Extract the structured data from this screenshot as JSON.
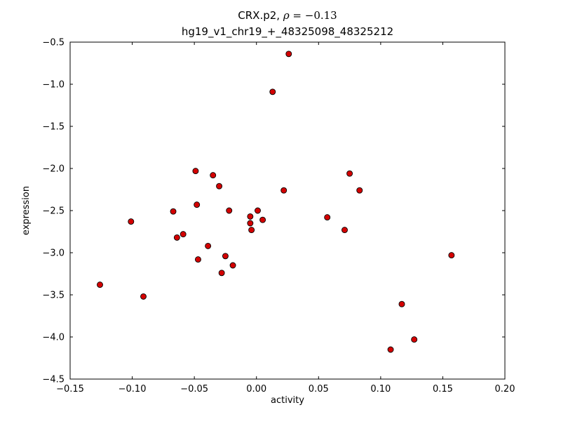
{
  "figure": {
    "background": "#ffffff",
    "frame_color": "#000000"
  },
  "chart_data": {
    "type": "scatter",
    "title": {
      "prefix": "CRX.p2, ",
      "rho": "ρ",
      "math_rest": " = −0.13",
      "line2": "hg19_v1_chr19_+_48325098_48325212"
    },
    "xlabel": "activity",
    "ylabel": "expression",
    "xlim": [
      -0.15,
      0.2
    ],
    "ylim": [
      -4.5,
      -0.5
    ],
    "grid": false,
    "legend_position": "none",
    "xticks": [
      {
        "value": -0.15,
        "label": "−0.15"
      },
      {
        "value": -0.1,
        "label": "−0.10"
      },
      {
        "value": -0.05,
        "label": "−0.05"
      },
      {
        "value": 0.0,
        "label": "0.00"
      },
      {
        "value": 0.05,
        "label": "0.05"
      },
      {
        "value": 0.1,
        "label": "0.10"
      },
      {
        "value": 0.15,
        "label": "0.15"
      },
      {
        "value": 0.2,
        "label": "0.20"
      }
    ],
    "yticks": [
      {
        "value": -4.5,
        "label": "−4.5"
      },
      {
        "value": -4.0,
        "label": "−4.0"
      },
      {
        "value": -3.5,
        "label": "−3.5"
      },
      {
        "value": -3.0,
        "label": "−3.0"
      },
      {
        "value": -2.5,
        "label": "−2.5"
      },
      {
        "value": -2.0,
        "label": "−2.0"
      },
      {
        "value": -1.5,
        "label": "−1.5"
      },
      {
        "value": -1.0,
        "label": "−1.0"
      },
      {
        "value": -0.5,
        "label": "−0.5"
      }
    ],
    "marker": {
      "shape": "circle",
      "fill": "#d40000",
      "edge": "#000000",
      "radius": 4
    },
    "points": [
      [
        -0.126,
        -3.38
      ],
      [
        -0.101,
        -2.63
      ],
      [
        -0.091,
        -3.52
      ],
      [
        -0.067,
        -2.51
      ],
      [
        -0.064,
        -2.82
      ],
      [
        -0.059,
        -2.78
      ],
      [
        -0.049,
        -2.03
      ],
      [
        -0.048,
        -2.43
      ],
      [
        -0.047,
        -3.08
      ],
      [
        -0.039,
        -2.92
      ],
      [
        -0.035,
        -2.08
      ],
      [
        -0.03,
        -2.21
      ],
      [
        -0.028,
        -3.24
      ],
      [
        -0.025,
        -3.04
      ],
      [
        -0.022,
        -2.5
      ],
      [
        -0.019,
        -3.15
      ],
      [
        -0.005,
        -2.57
      ],
      [
        -0.005,
        -2.65
      ],
      [
        -0.004,
        -2.73
      ],
      [
        0.001,
        -2.5
      ],
      [
        0.005,
        -2.61
      ],
      [
        0.013,
        -1.09
      ],
      [
        0.022,
        -2.26
      ],
      [
        0.026,
        -0.64
      ],
      [
        0.057,
        -2.58
      ],
      [
        0.071,
        -2.73
      ],
      [
        0.075,
        -2.06
      ],
      [
        0.083,
        -2.26
      ],
      [
        0.108,
        -4.15
      ],
      [
        0.117,
        -3.61
      ],
      [
        0.127,
        -4.03
      ],
      [
        0.157,
        -3.03
      ]
    ]
  }
}
